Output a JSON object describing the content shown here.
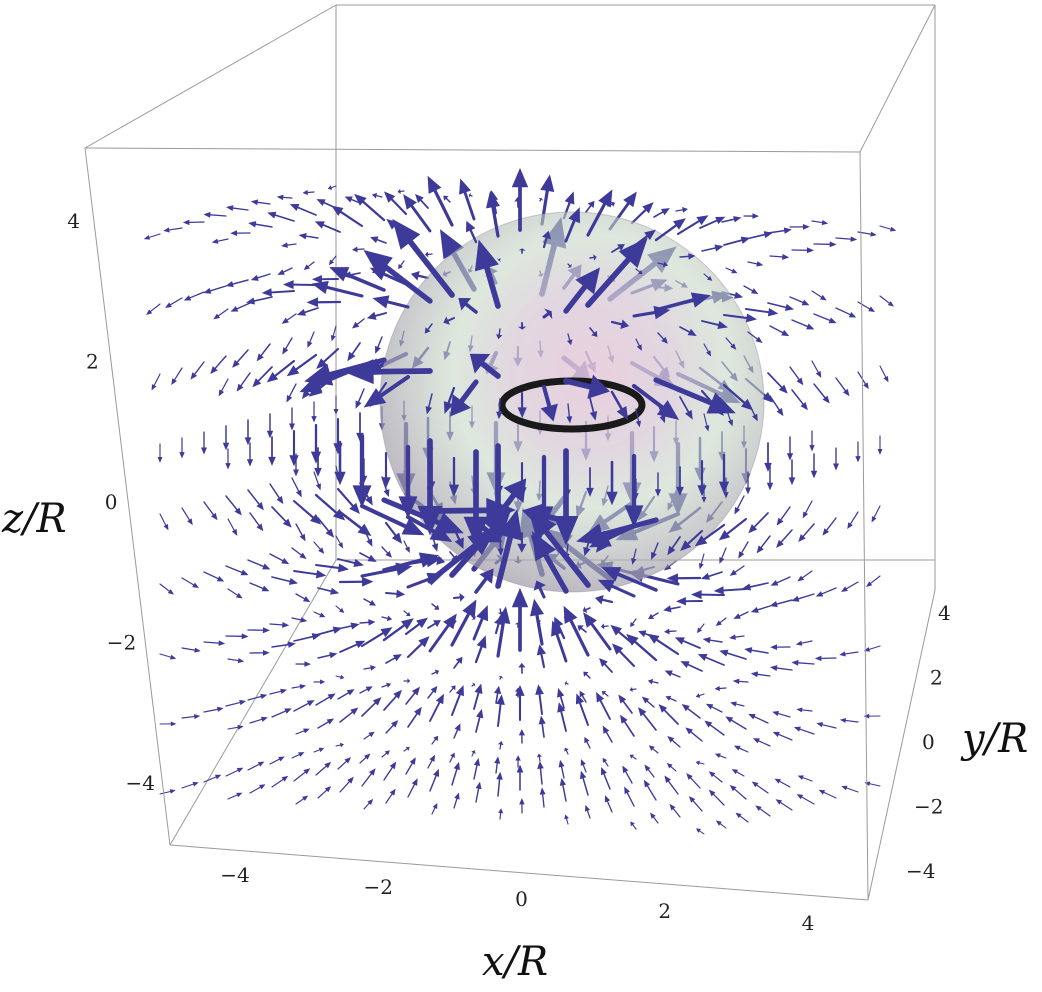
{
  "chart_data": {
    "type": "3d-vector-field",
    "title": "",
    "xlabel": "x/R",
    "ylabel": "y/R",
    "zlabel": "z/R",
    "xlim": [
      -5,
      5
    ],
    "ylim": [
      -5,
      5
    ],
    "zlim": [
      -5,
      5
    ],
    "x_ticks": [
      "−4",
      "−2",
      "0",
      "2",
      "4"
    ],
    "y_ticks": [
      "4",
      "2",
      "0",
      "−2",
      "−4"
    ],
    "z_ticks": [
      "4",
      "2",
      "0",
      "−2",
      "−4"
    ],
    "x_tick_values": [
      -4,
      -2,
      0,
      2,
      4
    ],
    "y_tick_values": [
      4,
      2,
      0,
      -2,
      -4
    ],
    "z_tick_values": [
      4,
      2,
      0,
      -2,
      -4
    ],
    "sphere": {
      "center": [
        0,
        0,
        1
      ],
      "radius": 2.5,
      "color": "#b9a9b8"
    },
    "ring": {
      "center": [
        0,
        0,
        1.4
      ],
      "radius": 1.2,
      "color": "#1a1a1a"
    },
    "arrow_color": "#3d3a9a",
    "grid": false,
    "box": true
  }
}
